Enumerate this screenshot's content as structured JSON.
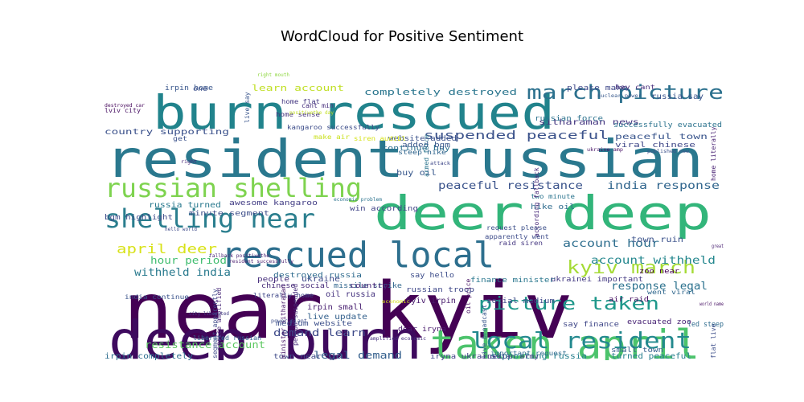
{
  "chart_data": {
    "type": "wordcloud",
    "title": "WordCloud for Positive Sentiment",
    "colormap": "viridis",
    "background": "#ffffff",
    "words": [
      {
        "text": "near kyiv",
        "size": 96,
        "color": "#440154",
        "rot": 0
      },
      {
        "text": "deep burn",
        "size": 66,
        "color": "#3e0a5e",
        "rot": 0
      },
      {
        "text": "resident russian",
        "size": 64,
        "color": "#2a788e",
        "rot": 0
      },
      {
        "text": "burn rescued",
        "size": 58,
        "color": "#21838c",
        "rot": 0
      },
      {
        "text": "deer deep",
        "size": 58,
        "color": "#32b57a",
        "rot": 0
      },
      {
        "text": "taken april",
        "size": 50,
        "color": "#4cc36c",
        "rot": 0
      },
      {
        "text": "rescued local",
        "size": 44,
        "color": "#2d6f8e",
        "rot": 0
      },
      {
        "text": "russian shelling",
        "size": 32,
        "color": "#7ed34f",
        "rot": 0
      },
      {
        "text": "shelling near",
        "size": 32,
        "color": "#2a7e8e",
        "rot": 0
      },
      {
        "text": "local resident",
        "size": 28,
        "color": "#23898e",
        "rot": 0
      },
      {
        "text": "march picture",
        "size": 24,
        "color": "#2c718e",
        "rot": 0
      },
      {
        "text": "picture taken",
        "size": 22,
        "color": "#1f988b",
        "rot": 0
      },
      {
        "text": "kyiv march",
        "size": 22,
        "color": "#a5db36",
        "rot": 0
      },
      {
        "text": "april deer",
        "size": 16,
        "color": "#d8e219",
        "rot": 0
      },
      {
        "text": "suspended peaceful",
        "size": 14,
        "color": "#3b528b",
        "rot": 0
      },
      {
        "text": "peaceful resistance",
        "size": 13,
        "color": "#3a538b",
        "rot": 0
      },
      {
        "text": "india response",
        "size": 13,
        "color": "#31668e",
        "rot": 0
      },
      {
        "text": "account withheld",
        "size": 13,
        "color": "#24878e",
        "rot": 0
      },
      {
        "text": "response legal",
        "size": 13,
        "color": "#2c728e",
        "rot": 0
      },
      {
        "text": "account hour",
        "size": 13,
        "color": "#2e6e8e",
        "rot": 0
      },
      {
        "text": "withheld india",
        "size": 13,
        "color": "#297a8e",
        "rot": 0
      },
      {
        "text": "hour period",
        "size": 12,
        "color": "#42be71",
        "rot": 0
      },
      {
        "text": "resistance account",
        "size": 12,
        "color": "#5ec962",
        "rot": 0
      },
      {
        "text": "demand learn",
        "size": 12,
        "color": "#3e4a89",
        "rot": 0
      },
      {
        "text": "legal demand",
        "size": 12,
        "color": "#35608d",
        "rot": 0
      },
      {
        "text": "completely destroyed",
        "size": 11,
        "color": "#2a768e",
        "rot": 0
      },
      {
        "text": "learn account",
        "size": 11,
        "color": "#c0df25",
        "rot": 0
      },
      {
        "text": "country supporting",
        "size": 10,
        "color": "#3b518b",
        "rot": 0
      },
      {
        "text": "peaceful town",
        "size": 10,
        "color": "#39558c",
        "rot": 0
      },
      {
        "text": "sitharaman news",
        "size": 10,
        "color": "#453781",
        "rot": 0
      },
      {
        "text": "successfully evacuated",
        "size": 9,
        "color": "#2c738e",
        "rot": 0
      },
      {
        "text": "viral chinese",
        "size": 9,
        "color": "#3f4788",
        "rot": 0
      },
      {
        "text": "continue buy",
        "size": 9,
        "color": "#2d708e",
        "rot": 0
      },
      {
        "text": "buy oil",
        "size": 10,
        "color": "#38588c",
        "rot": 0
      },
      {
        "text": "russia turned",
        "size": 10,
        "color": "#29798e",
        "rot": 0
      },
      {
        "text": "minute segment",
        "size": 9,
        "color": "#3d4e8a",
        "rot": 0
      },
      {
        "text": "bgm highlight",
        "size": 9,
        "color": "#3e4c8a",
        "rot": 0
      },
      {
        "text": "awesome kangaroo",
        "size": 9,
        "color": "#433e85",
        "rot": 0
      },
      {
        "text": "win according",
        "size": 9,
        "color": "#414487",
        "rot": 0
      },
      {
        "text": "hike oil",
        "size": 9,
        "color": "#2f6c8e",
        "rot": 0
      },
      {
        "text": "town ruin",
        "size": 10,
        "color": "#3b528b",
        "rot": 0
      },
      {
        "text": "zoo near",
        "size": 9,
        "color": "#440154",
        "rot": 0
      },
      {
        "text": "ukraine",
        "size": 10,
        "color": "#3e4989",
        "rot": 0
      },
      {
        "text": "finance minister",
        "size": 9,
        "color": "#2a778e",
        "rot": 0
      },
      {
        "text": "ukrainei important",
        "size": 9,
        "color": "#443a83",
        "rot": 0
      },
      {
        "text": "say hello",
        "size": 9,
        "color": "#3d4d8a",
        "rot": 0
      },
      {
        "text": "people",
        "size": 9,
        "color": "#472f7d",
        "rot": 0
      },
      {
        "text": "destroyed russia",
        "size": 9,
        "color": "#2f6b8e",
        "rot": 0
      },
      {
        "text": "missile strike",
        "size": 9,
        "color": "#31678e",
        "rot": 0
      },
      {
        "text": "chinese social",
        "size": 9,
        "color": "#472c7a",
        "rot": 0
      },
      {
        "text": "russian troop",
        "size": 9,
        "color": "#3f4889",
        "rot": 0
      },
      {
        "text": "kyiv irpin",
        "size": 10,
        "color": "#481b6d",
        "rot": 0
      },
      {
        "text": "social medium",
        "size": 9,
        "color": "#3e4989",
        "rot": 0
      },
      {
        "text": "oil russia",
        "size": 10,
        "color": "#46337f",
        "rot": 0
      },
      {
        "text": "country",
        "size": 9,
        "color": "#482677",
        "rot": 0
      },
      {
        "text": "irpin small",
        "size": 10,
        "color": "#481f70",
        "rot": 0
      },
      {
        "text": "live update",
        "size": 10,
        "color": "#34618d",
        "rot": 0
      },
      {
        "text": "medium website",
        "size": 9,
        "color": "#3c4f8a",
        "rot": 0
      },
      {
        "text": "dear iryna",
        "size": 9,
        "color": "#481a6c",
        "rot": 0
      },
      {
        "text": "say finance",
        "size": 9,
        "color": "#3f4788",
        "rot": 0
      },
      {
        "text": "small town",
        "size": 9,
        "color": "#355f8d",
        "rot": 0
      },
      {
        "text": "evacuated zoo",
        "size": 9,
        "color": "#482475",
        "rot": 0
      },
      {
        "text": "air raid",
        "size": 9,
        "color": "#471063",
        "rot": 0
      },
      {
        "text": "went viral",
        "size": 8,
        "color": "#31688e",
        "rot": 0
      },
      {
        "text": "led steep",
        "size": 9,
        "color": "#2f6c8e",
        "rot": 0
      },
      {
        "text": "irpin completely",
        "size": 10,
        "color": "#2e6e8e",
        "rot": 0
      },
      {
        "text": "town near",
        "size": 9,
        "color": "#3e4a89",
        "rot": 0
      },
      {
        "text": "supporting russia",
        "size": 10,
        "color": "#26818e",
        "rot": 0
      },
      {
        "text": "iryna ukrainei",
        "size": 9,
        "color": "#414487",
        "rot": 0
      },
      {
        "text": "turned peaceful",
        "size": 10,
        "color": "#277f8e",
        "rot": 0
      },
      {
        "text": "russian force",
        "size": 9,
        "color": "#2c728e",
        "rot": 0
      },
      {
        "text": "russia say",
        "size": 10,
        "color": "#3a548c",
        "rot": 0
      },
      {
        "text": "please make",
        "size": 9,
        "color": "#3f4889",
        "rot": 0
      },
      {
        "text": "hey cant",
        "size": 8,
        "color": "#472e7c",
        "rot": 0
      },
      {
        "text": "irpin home",
        "size": 9,
        "color": "#39568c",
        "rot": 0
      },
      {
        "text": "kangaroo successfully",
        "size": 8,
        "color": "#3d4d8a",
        "rot": 0
      },
      {
        "text": "website added",
        "size": 9,
        "color": "#3b518b",
        "rot": 0
      },
      {
        "text": "added bgm",
        "size": 9,
        "color": "#38588c",
        "rot": 0
      },
      {
        "text": "steep hike",
        "size": 8,
        "color": "#31668e",
        "rot": 0
      },
      {
        "text": "liberated russian",
        "size": 8,
        "color": "#32658e",
        "rot": 0
      },
      {
        "text": "two minute",
        "size": 8,
        "color": "#2b748e",
        "rot": 0
      },
      {
        "text": "request please",
        "size": 8,
        "color": "#3c4f8a",
        "rot": 0
      },
      {
        "text": "important request",
        "size": 8,
        "color": "#2e6d8e",
        "rot": 0
      },
      {
        "text": "russian army",
        "size": 8,
        "color": "#433d84",
        "rot": 0
      },
      {
        "text": "live broadcast",
        "size": 8,
        "color": "#39568c",
        "rot": 90
      },
      {
        "text": "segment apparently",
        "size": 8,
        "color": "#3e4a89",
        "rot": 90
      },
      {
        "text": "minister sitharaman",
        "size": 8,
        "color": "#48186a",
        "rot": 90
      },
      {
        "text": "period suspended",
        "size": 8,
        "color": "#472d7b",
        "rot": 90
      },
      {
        "text": "according fallback",
        "size": 8,
        "color": "#482979",
        "rot": 90
      },
      {
        "text": "armed force",
        "size": 8,
        "color": "#2b758e",
        "rot": 90
      },
      {
        "text": "oil price",
        "size": 8,
        "color": "#471365",
        "rot": 90
      },
      {
        "text": "live say",
        "size": 8,
        "color": "#39558c",
        "rot": 90
      },
      {
        "text": "home literally",
        "size": 8,
        "color": "#482173",
        "rot": 90
      },
      {
        "text": "price amplified",
        "size": 8,
        "color": "#482878",
        "rot": 90
      },
      {
        "text": "literally home",
        "size": 8,
        "color": "#3f4788",
        "rot": 0
      },
      {
        "text": "india continue",
        "size": 8,
        "color": "#3a538b",
        "rot": 0
      },
      {
        "text": "home sense",
        "size": 8,
        "color": "#46337f",
        "rot": 0
      },
      {
        "text": "home flat",
        "size": 8,
        "color": "#453882",
        "rot": 0
      },
      {
        "text": "cant min",
        "size": 8,
        "color": "#472f7d",
        "rot": 0
      },
      {
        "text": "lviv city",
        "size": 8,
        "color": "#471063",
        "rot": 0
      },
      {
        "text": "one",
        "size": 8,
        "color": "#3c508b",
        "rot": 0
      },
      {
        "text": "flat live",
        "size": 8,
        "color": "#3d4e8a",
        "rot": 90
      },
      {
        "text": "raid siren",
        "size": 8,
        "color": "#453781",
        "rot": 0
      },
      {
        "text": "apparently went",
        "size": 8,
        "color": "#3e4c8a",
        "rot": 0
      },
      {
        "text": "make air",
        "size": 8,
        "color": "#cae11f",
        "rot": 0
      },
      {
        "text": "siren audibl",
        "size": 8,
        "color": "#d5e21a",
        "rot": 0
      },
      {
        "text": "get",
        "size": 8,
        "color": "#3b528b",
        "rot": 0
      },
      {
        "text": "right",
        "size": 6,
        "color": "#482677",
        "rot": 0
      },
      {
        "text": "hello world",
        "size": 6,
        "color": "#3e4a89",
        "rot": 0
      },
      {
        "text": "amplified economic",
        "size": 6,
        "color": "#46307e",
        "rot": 0
      },
      {
        "text": "power plant",
        "size": 6,
        "color": "#3d4e8a",
        "rot": 0
      },
      {
        "text": "city liberated",
        "size": 6,
        "color": "#433d84",
        "rot": 0
      },
      {
        "text": "nuclear power",
        "size": 6,
        "color": "#38598c",
        "rot": 0
      },
      {
        "text": "destroyed car",
        "size": 6,
        "color": "#46085c",
        "rot": 0
      },
      {
        "text": "ukraine amp",
        "size": 6,
        "color": "#481467",
        "rot": 0
      },
      {
        "text": "published new",
        "size": 6,
        "color": "#3b518b",
        "rot": 0
      },
      {
        "text": "fallback positivethe",
        "size": 6,
        "color": "#482273",
        "rot": 0
      },
      {
        "text": "resident successfully",
        "size": 6,
        "color": "#481c6e",
        "rot": 0
      },
      {
        "text": "world name",
        "size": 6,
        "color": "#471164",
        "rot": 0
      },
      {
        "text": "attack",
        "size": 6,
        "color": "#3f4889",
        "rot": 0
      },
      {
        "text": "great",
        "size": 6,
        "color": "#482071",
        "rot": 0
      },
      {
        "text": "economic problem",
        "size": 6,
        "color": "#2c738e",
        "rot": 0
      },
      {
        "text": "positivethe day",
        "size": 6,
        "color": "#c2df23",
        "rot": 0
      },
      {
        "text": "right mouth",
        "size": 6,
        "color": "#90d743",
        "rot": 0
      },
      {
        "text": "economic",
        "size": 6,
        "color": "#d2e21b",
        "rot": 0
      }
    ]
  }
}
